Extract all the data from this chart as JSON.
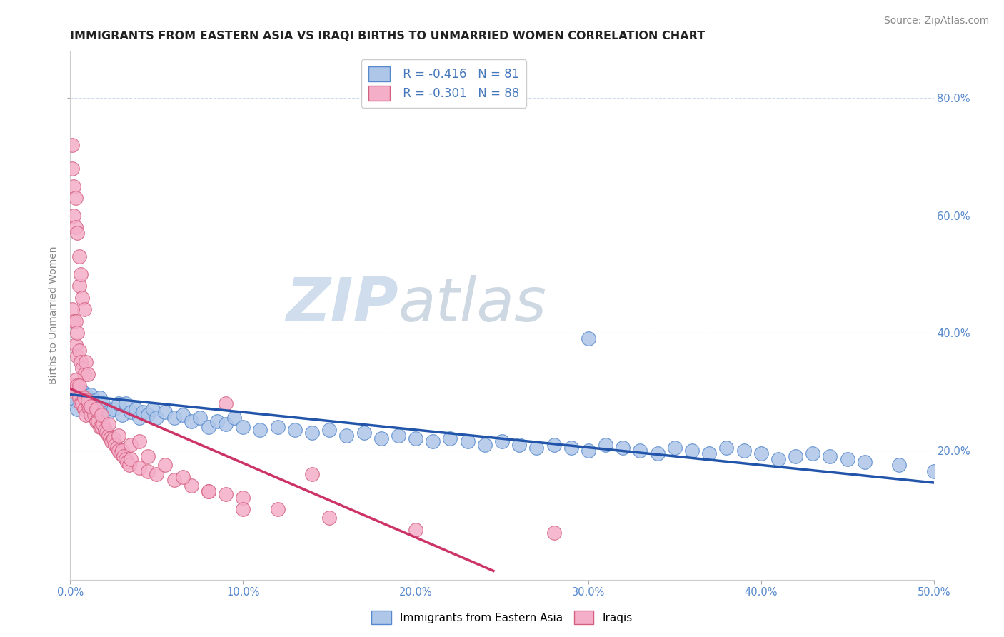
{
  "title": "IMMIGRANTS FROM EASTERN ASIA VS IRAQI BIRTHS TO UNMARRIED WOMEN CORRELATION CHART",
  "source": "Source: ZipAtlas.com",
  "ylabel": "Births to Unmarried Women",
  "ylabel_right_ticks": [
    "80.0%",
    "60.0%",
    "40.0%",
    "20.0%"
  ],
  "ylabel_right_vals": [
    0.8,
    0.6,
    0.4,
    0.2
  ],
  "legend_blue_r": "R = -0.416",
  "legend_blue_n": "N = 81",
  "legend_pink_r": "R = -0.301",
  "legend_pink_n": "N = 88",
  "watermark_zip": "ZIP",
  "watermark_atlas": "atlas",
  "blue_color": "#aec6e8",
  "pink_color": "#f4aec8",
  "blue_edge_color": "#5588cc",
  "pink_edge_color": "#d46080",
  "blue_line_color": "#2255aa",
  "pink_line_color": "#cc3366",
  "blue_scatter": [
    [
      0.001,
      0.295
    ],
    [
      0.002,
      0.31
    ],
    [
      0.003,
      0.285
    ],
    [
      0.004,
      0.27
    ],
    [
      0.005,
      0.3
    ],
    [
      0.006,
      0.285
    ],
    [
      0.007,
      0.3
    ],
    [
      0.008,
      0.275
    ],
    [
      0.009,
      0.295
    ],
    [
      0.01,
      0.28
    ],
    [
      0.011,
      0.265
    ],
    [
      0.012,
      0.295
    ],
    [
      0.013,
      0.27
    ],
    [
      0.014,
      0.285
    ],
    [
      0.015,
      0.26
    ],
    [
      0.016,
      0.275
    ],
    [
      0.017,
      0.29
    ],
    [
      0.018,
      0.265
    ],
    [
      0.019,
      0.28
    ],
    [
      0.02,
      0.27
    ],
    [
      0.022,
      0.265
    ],
    [
      0.025,
      0.27
    ],
    [
      0.028,
      0.28
    ],
    [
      0.03,
      0.26
    ],
    [
      0.032,
      0.28
    ],
    [
      0.035,
      0.265
    ],
    [
      0.038,
      0.27
    ],
    [
      0.04,
      0.255
    ],
    [
      0.042,
      0.265
    ],
    [
      0.045,
      0.26
    ],
    [
      0.048,
      0.27
    ],
    [
      0.05,
      0.255
    ],
    [
      0.055,
      0.265
    ],
    [
      0.06,
      0.255
    ],
    [
      0.065,
      0.26
    ],
    [
      0.07,
      0.25
    ],
    [
      0.075,
      0.255
    ],
    [
      0.08,
      0.24
    ],
    [
      0.085,
      0.25
    ],
    [
      0.09,
      0.245
    ],
    [
      0.095,
      0.255
    ],
    [
      0.1,
      0.24
    ],
    [
      0.11,
      0.235
    ],
    [
      0.12,
      0.24
    ],
    [
      0.13,
      0.235
    ],
    [
      0.14,
      0.23
    ],
    [
      0.15,
      0.235
    ],
    [
      0.16,
      0.225
    ],
    [
      0.17,
      0.23
    ],
    [
      0.18,
      0.22
    ],
    [
      0.19,
      0.225
    ],
    [
      0.2,
      0.22
    ],
    [
      0.21,
      0.215
    ],
    [
      0.22,
      0.22
    ],
    [
      0.23,
      0.215
    ],
    [
      0.24,
      0.21
    ],
    [
      0.25,
      0.215
    ],
    [
      0.26,
      0.21
    ],
    [
      0.27,
      0.205
    ],
    [
      0.28,
      0.21
    ],
    [
      0.29,
      0.205
    ],
    [
      0.3,
      0.2
    ],
    [
      0.31,
      0.21
    ],
    [
      0.32,
      0.205
    ],
    [
      0.33,
      0.2
    ],
    [
      0.34,
      0.195
    ],
    [
      0.35,
      0.205
    ],
    [
      0.36,
      0.2
    ],
    [
      0.37,
      0.195
    ],
    [
      0.38,
      0.205
    ],
    [
      0.39,
      0.2
    ],
    [
      0.4,
      0.195
    ],
    [
      0.41,
      0.185
    ],
    [
      0.42,
      0.19
    ],
    [
      0.43,
      0.195
    ],
    [
      0.44,
      0.19
    ],
    [
      0.45,
      0.185
    ],
    [
      0.46,
      0.18
    ],
    [
      0.48,
      0.175
    ],
    [
      0.5,
      0.165
    ],
    [
      0.3,
      0.39
    ]
  ],
  "pink_scatter": [
    [
      0.001,
      0.72
    ],
    [
      0.001,
      0.68
    ],
    [
      0.002,
      0.65
    ],
    [
      0.002,
      0.6
    ],
    [
      0.003,
      0.63
    ],
    [
      0.003,
      0.58
    ],
    [
      0.004,
      0.57
    ],
    [
      0.005,
      0.53
    ],
    [
      0.005,
      0.48
    ],
    [
      0.006,
      0.5
    ],
    [
      0.007,
      0.46
    ],
    [
      0.008,
      0.44
    ],
    [
      0.001,
      0.44
    ],
    [
      0.002,
      0.42
    ],
    [
      0.003,
      0.42
    ],
    [
      0.003,
      0.38
    ],
    [
      0.004,
      0.4
    ],
    [
      0.004,
      0.36
    ],
    [
      0.005,
      0.37
    ],
    [
      0.006,
      0.35
    ],
    [
      0.007,
      0.34
    ],
    [
      0.008,
      0.33
    ],
    [
      0.009,
      0.35
    ],
    [
      0.01,
      0.33
    ],
    [
      0.001,
      0.31
    ],
    [
      0.002,
      0.3
    ],
    [
      0.003,
      0.32
    ],
    [
      0.004,
      0.31
    ],
    [
      0.005,
      0.29
    ],
    [
      0.006,
      0.28
    ],
    [
      0.007,
      0.28
    ],
    [
      0.008,
      0.27
    ],
    [
      0.009,
      0.26
    ],
    [
      0.01,
      0.28
    ],
    [
      0.011,
      0.27
    ],
    [
      0.012,
      0.26
    ],
    [
      0.013,
      0.27
    ],
    [
      0.014,
      0.26
    ],
    [
      0.015,
      0.25
    ],
    [
      0.016,
      0.25
    ],
    [
      0.017,
      0.24
    ],
    [
      0.018,
      0.24
    ],
    [
      0.019,
      0.245
    ],
    [
      0.02,
      0.235
    ],
    [
      0.021,
      0.23
    ],
    [
      0.022,
      0.225
    ],
    [
      0.023,
      0.22
    ],
    [
      0.024,
      0.215
    ],
    [
      0.025,
      0.22
    ],
    [
      0.026,
      0.21
    ],
    [
      0.027,
      0.205
    ],
    [
      0.028,
      0.2
    ],
    [
      0.029,
      0.195
    ],
    [
      0.03,
      0.2
    ],
    [
      0.031,
      0.19
    ],
    [
      0.032,
      0.185
    ],
    [
      0.033,
      0.18
    ],
    [
      0.034,
      0.175
    ],
    [
      0.035,
      0.185
    ],
    [
      0.04,
      0.17
    ],
    [
      0.045,
      0.165
    ],
    [
      0.05,
      0.16
    ],
    [
      0.06,
      0.15
    ],
    [
      0.07,
      0.14
    ],
    [
      0.08,
      0.13
    ],
    [
      0.09,
      0.125
    ],
    [
      0.1,
      0.12
    ],
    [
      0.12,
      0.1
    ],
    [
      0.15,
      0.085
    ],
    [
      0.2,
      0.065
    ],
    [
      0.005,
      0.31
    ],
    [
      0.008,
      0.29
    ],
    [
      0.01,
      0.285
    ],
    [
      0.012,
      0.275
    ],
    [
      0.015,
      0.27
    ],
    [
      0.018,
      0.26
    ],
    [
      0.022,
      0.245
    ],
    [
      0.028,
      0.225
    ],
    [
      0.035,
      0.21
    ],
    [
      0.045,
      0.19
    ],
    [
      0.055,
      0.175
    ],
    [
      0.065,
      0.155
    ],
    [
      0.08,
      0.13
    ],
    [
      0.1,
      0.1
    ],
    [
      0.04,
      0.215
    ],
    [
      0.28,
      0.06
    ],
    [
      0.09,
      0.28
    ],
    [
      0.14,
      0.16
    ]
  ],
  "xlim": [
    0.0,
    0.5
  ],
  "ylim": [
    -0.02,
    0.88
  ],
  "blue_line_x": [
    0.0,
    0.5
  ],
  "blue_line_y": [
    0.295,
    0.145
  ],
  "pink_line_x": [
    0.0,
    0.245
  ],
  "pink_line_y": [
    0.305,
    -0.005
  ],
  "xtick_vals": [
    0.0,
    0.1,
    0.2,
    0.3,
    0.4,
    0.5
  ],
  "xtick_labels": [
    "0.0%",
    "10.0%",
    "20.0%",
    "30.0%",
    "40.0%",
    "50.0%"
  ],
  "background_color": "#ffffff",
  "grid_color": "#c8d8e8",
  "title_fontsize": 11.5,
  "source_fontsize": 10,
  "axis_label_fontsize": 10,
  "tick_fontsize": 10.5
}
